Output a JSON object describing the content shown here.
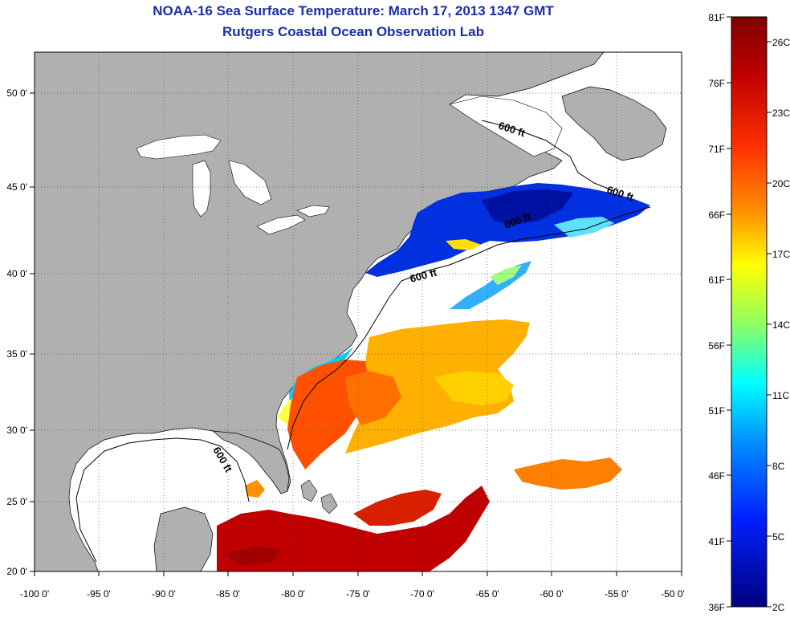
{
  "header": {
    "title": "NOAA-16 Sea Surface Temperature:  March 17, 2013 1347 GMT",
    "subtitle": "Rutgers Coastal Ocean Observation Lab"
  },
  "map": {
    "lon_ticks": [
      "-100 0'",
      "-95 0'",
      "-90 0'",
      "-85 0'",
      "-80 0'",
      "-75 0'",
      "-70 0'",
      "-65 0'",
      "-60 0'",
      "-55 0'",
      "-50 0'"
    ],
    "lat_ticks": [
      "50 0'",
      "45 0'",
      "40 0'",
      "35 0'",
      "30 0'",
      "25 0'",
      "20 0'"
    ],
    "contour_labels": [
      "600 ft",
      "600 ft",
      "600 ft",
      "600 ft",
      "600 ft"
    ],
    "land_color": "#b0b0b0",
    "ocean_color": "#ffffff"
  },
  "colorbar": {
    "fahrenheit_labels": [
      "81F",
      "76F",
      "71F",
      "66F",
      "61F",
      "56F",
      "51F",
      "46F",
      "41F",
      "36F"
    ],
    "celsius_labels": [
      "26C",
      "23C",
      "20C",
      "17C",
      "14C",
      "11C",
      "8C",
      "5C",
      "2C"
    ],
    "colors": [
      "#7f0000",
      "#d40000",
      "#ff4000",
      "#ff9a00",
      "#ffff00",
      "#80ff80",
      "#00e0ff",
      "#0080ff",
      "#0000ff",
      "#00008f"
    ]
  }
}
